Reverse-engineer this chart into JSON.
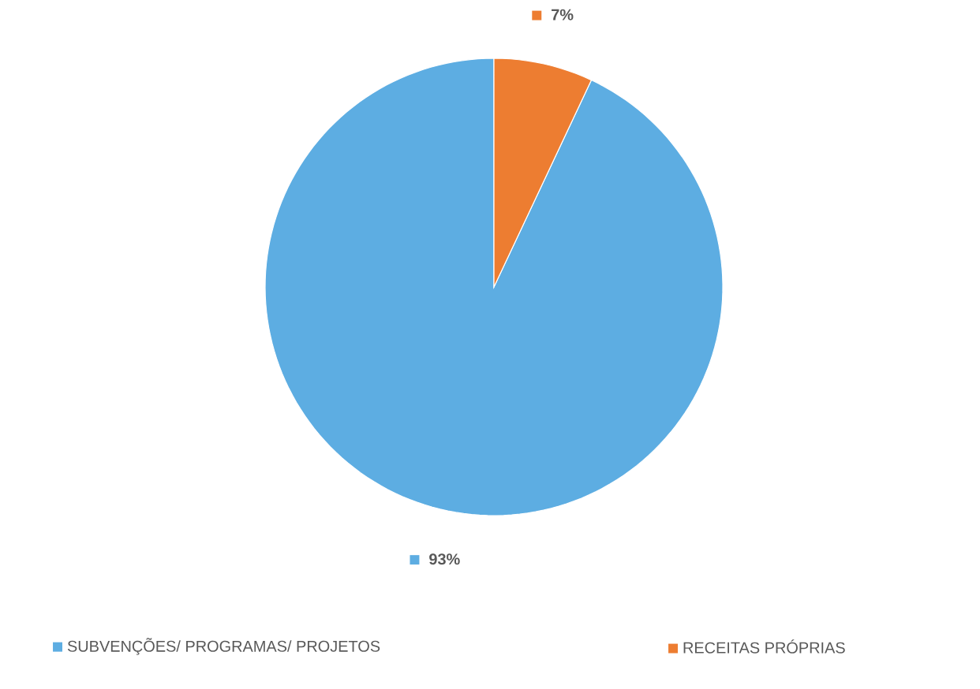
{
  "chart_data": {
    "type": "pie",
    "categories": [
      "SUBVENÇÕES/ PROGRAMAS/ PROJETOS",
      "RECEITAS PRÓPRIAS"
    ],
    "values": [
      93,
      7
    ],
    "colors": [
      "#5dade2",
      "#ed7d31"
    ],
    "value_labels": [
      "93%",
      "7%"
    ],
    "legend": "bottom"
  }
}
